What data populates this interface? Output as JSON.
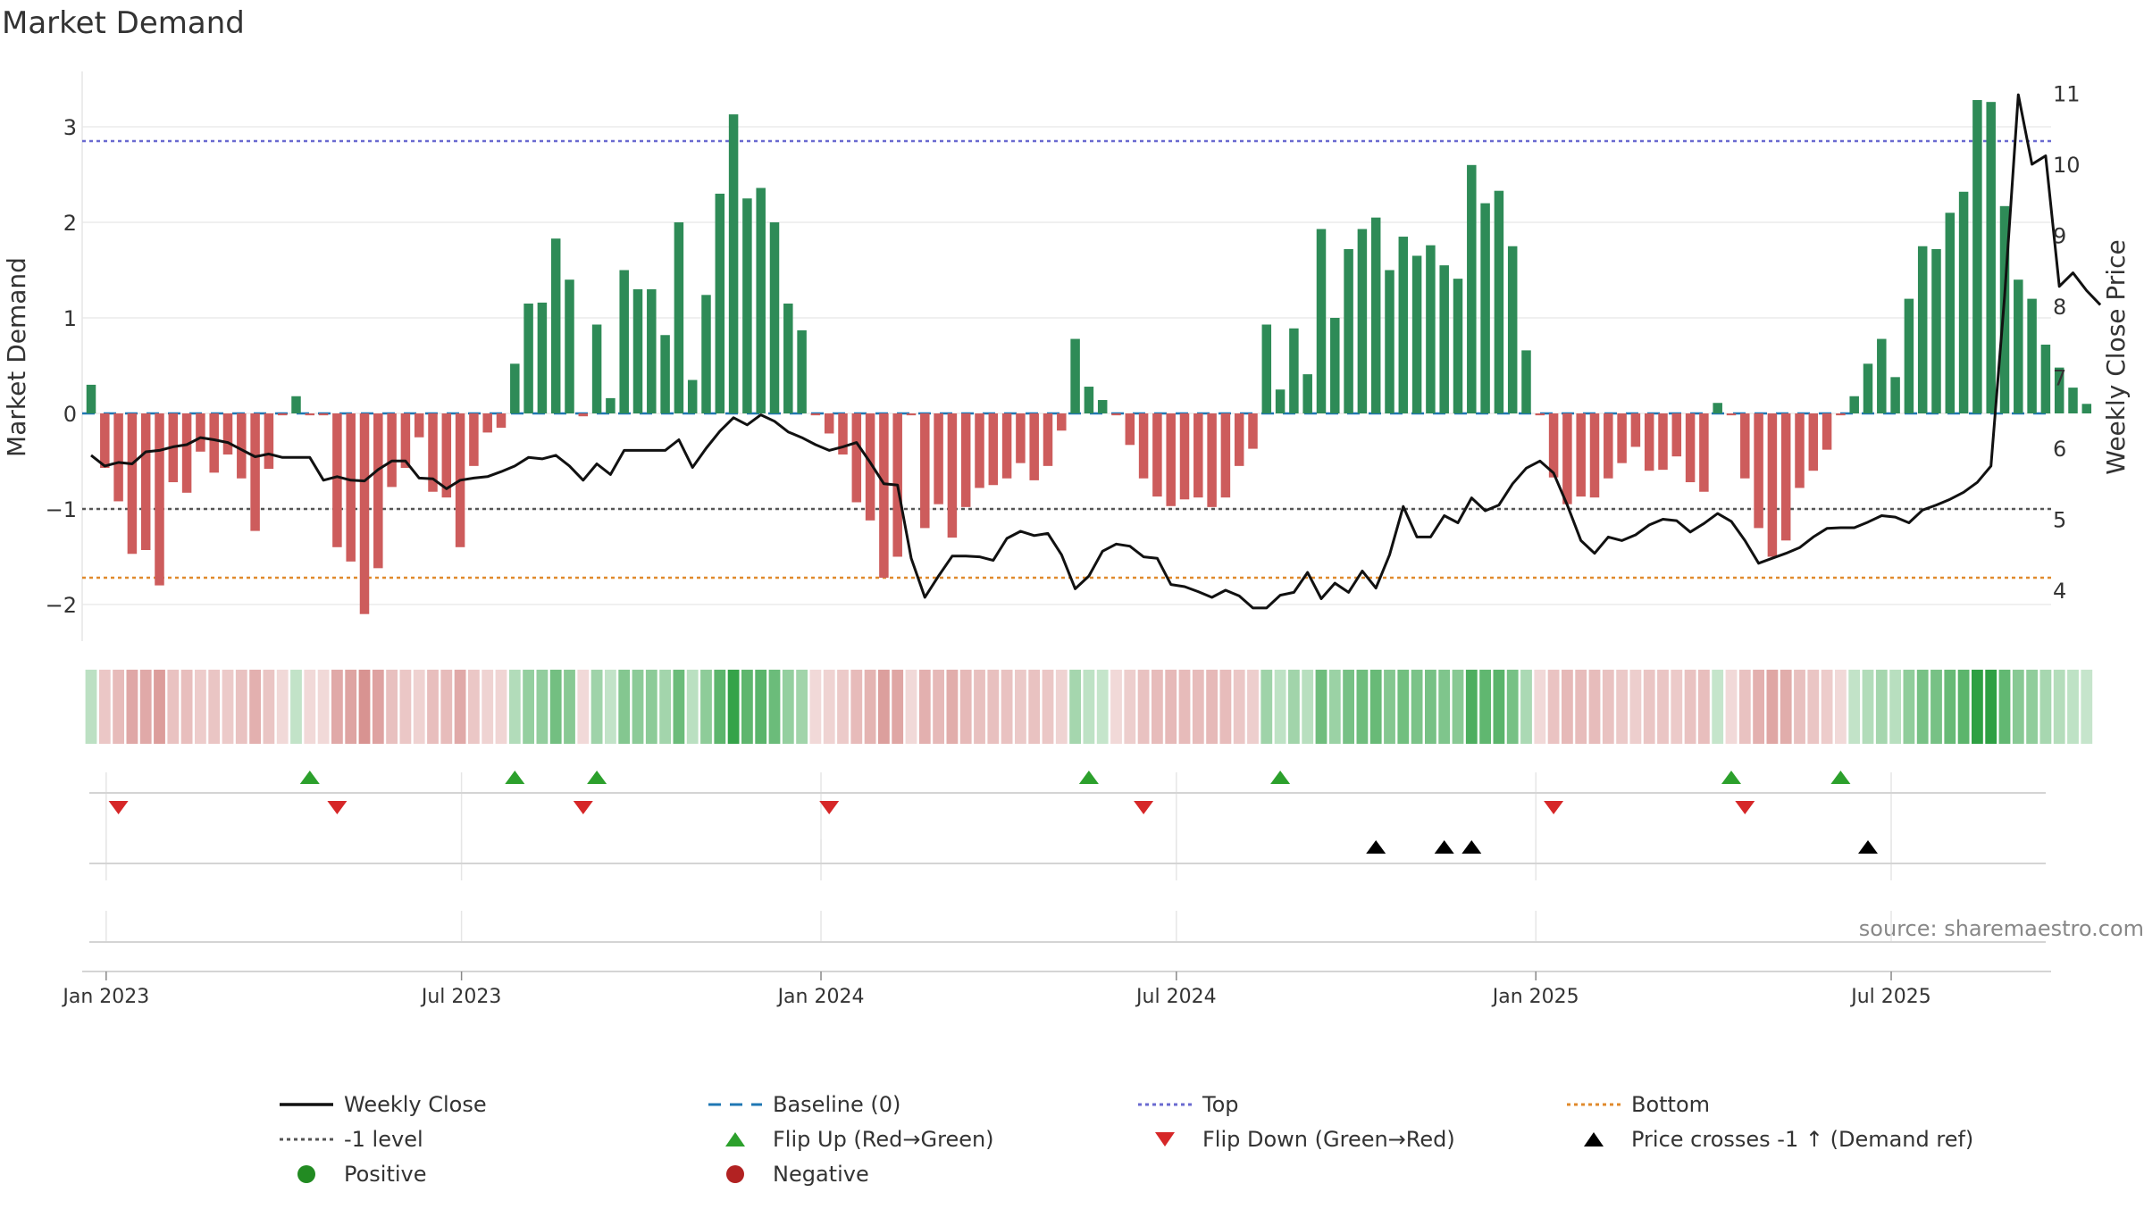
{
  "chart_data": {
    "type": "bar",
    "title": "Market Demand",
    "source": "source: sharemaestro.com",
    "ylabel_left": "Market Demand",
    "ylabel_right": "Weekly Close Price",
    "ylim_left": [
      -2.4,
      3.5
    ],
    "ylim_right": [
      3.2,
      11.2
    ],
    "yticks_left": [
      -2,
      -1,
      0,
      1,
      2,
      3
    ],
    "ytick_labels_left": [
      "−2",
      "−1",
      "0",
      "1",
      "2",
      "3"
    ],
    "yticks_right": [
      4,
      5,
      6,
      7,
      8,
      9,
      10,
      11
    ],
    "ytick_labels_right": [
      "4",
      "5",
      "6",
      "7",
      "8",
      "9",
      "10",
      "11"
    ],
    "reference_lines": {
      "top": 2.85,
      "minus_one": -1,
      "bottom": -1.72,
      "baseline": 0
    },
    "x_ticks": [
      {
        "label": "Jan 2023",
        "week": 1.1
      },
      {
        "label": "Jul 2023",
        "week": 27.1
      },
      {
        "label": "Jan 2024",
        "week": 53.4
      },
      {
        "label": "Jul 2024",
        "week": 79.4
      },
      {
        "label": "Jan 2025",
        "week": 105.7
      },
      {
        "label": "Jul 2025",
        "week": 131.7
      }
    ],
    "weeks": 145,
    "demand": [
      0.3,
      -0.57,
      -0.92,
      -1.47,
      -1.43,
      -1.8,
      -0.72,
      -0.83,
      -0.4,
      -0.62,
      -0.43,
      -0.68,
      -1.23,
      -0.58,
      -0.02,
      0.18,
      -0.02,
      -0.02,
      -1.4,
      -1.55,
      -2.1,
      -1.62,
      -0.77,
      -0.57,
      -0.25,
      -0.82,
      -0.88,
      -1.4,
      -0.55,
      -0.2,
      -0.15,
      0.52,
      1.15,
      1.16,
      1.83,
      1.4,
      -0.03,
      0.93,
      0.16,
      1.5,
      1.3,
      1.3,
      0.82,
      2.0,
      0.35,
      1.24,
      2.3,
      3.13,
      2.25,
      2.36,
      2.0,
      1.15,
      0.87,
      -0.02,
      -0.21,
      -0.43,
      -0.93,
      -1.12,
      -1.72,
      -1.5,
      -0.02,
      -1.2,
      -0.95,
      -1.3,
      -0.98,
      -0.78,
      -0.75,
      -0.68,
      -0.52,
      -0.7,
      -0.55,
      -0.18,
      0.78,
      0.28,
      0.14,
      -0.02,
      -0.33,
      -0.68,
      -0.87,
      -0.97,
      -0.9,
      -0.88,
      -0.98,
      -0.88,
      -0.55,
      -0.37,
      0.93,
      0.25,
      0.89,
      0.41,
      1.93,
      1.0,
      1.72,
      1.93,
      2.05,
      1.5,
      1.85,
      1.65,
      1.76,
      1.55,
      1.41,
      2.6,
      2.2,
      2.33,
      1.75,
      0.66,
      -0.02,
      -0.67,
      -0.95,
      -0.87,
      -0.88,
      -0.68,
      -0.52,
      -0.35,
      -0.6,
      -0.59,
      -0.45,
      -0.72,
      -0.82,
      0.11,
      -0.02,
      -0.68,
      -1.2,
      -1.5,
      -1.33,
      -0.78,
      -0.6,
      -0.38,
      -0.02,
      0.18,
      0.52,
      0.78,
      0.38,
      1.2,
      1.75,
      1.72,
      2.1,
      2.32,
      3.28,
      3.26,
      2.17,
      1.4,
      1.2,
      0.72,
      0.48,
      0.27,
      0.1
    ],
    "price": [
      5.9,
      5.75,
      5.8,
      5.78,
      5.95,
      5.97,
      6.02,
      6.05,
      6.15,
      6.12,
      6.08,
      5.98,
      5.88,
      5.92,
      5.87,
      5.87,
      5.87,
      5.55,
      5.6,
      5.55,
      5.54,
      5.7,
      5.82,
      5.82,
      5.58,
      5.57,
      5.43,
      5.55,
      5.58,
      5.6,
      5.67,
      5.75,
      5.87,
      5.85,
      5.9,
      5.75,
      5.55,
      5.78,
      5.63,
      5.97,
      5.97,
      5.97,
      5.97,
      6.12,
      5.73,
      6.0,
      6.24,
      6.43,
      6.33,
      6.47,
      6.38,
      6.23,
      6.15,
      6.05,
      5.97,
      6.02,
      6.08,
      5.8,
      5.5,
      5.48,
      4.45,
      3.9,
      4.2,
      4.48,
      4.48,
      4.47,
      4.42,
      4.73,
      4.83,
      4.77,
      4.8,
      4.5,
      4.02,
      4.2,
      4.55,
      4.65,
      4.62,
      4.47,
      4.45,
      4.08,
      4.05,
      3.98,
      3.9,
      4.0,
      3.92,
      3.75,
      3.75,
      3.93,
      3.97,
      4.25,
      3.88,
      4.1,
      3.97,
      4.27,
      4.03,
      4.5,
      5.18,
      4.75,
      4.75,
      5.05,
      4.95,
      5.3,
      5.12,
      5.2,
      5.5,
      5.72,
      5.82,
      5.65,
      5.2,
      4.7,
      4.52,
      4.75,
      4.7,
      4.78,
      4.92,
      5.0,
      4.98,
      4.82,
      4.94,
      5.08,
      4.97,
      4.7,
      4.38,
      4.45,
      4.52,
      4.6,
      4.75,
      4.87,
      4.88,
      4.88,
      4.96,
      5.05,
      5.03,
      4.95,
      5.13,
      5.2,
      5.28,
      5.38,
      5.52,
      5.75,
      8.15,
      10.98,
      10.0,
      10.12,
      8.28,
      8.47,
      8.22,
      8.02
    ]
  },
  "markers": {
    "flip_up_weeks": [
      16,
      31,
      37,
      73,
      87,
      120,
      128
    ],
    "flip_down_weeks": [
      2,
      18,
      36,
      54,
      77,
      107,
      121
    ],
    "price_cross_weeks": [
      94,
      99,
      101,
      130
    ]
  },
  "legend": {
    "weekly_close": "Weekly Close",
    "baseline": "Baseline (0)",
    "top": "Top",
    "bottom": "Bottom",
    "minus_one": "-1 level",
    "flip_up": "Flip Up (Red→Green)",
    "flip_down": "Flip Down (Green→Red)",
    "price_cross": "Price crosses -1 ↑ (Demand ref)",
    "positive": "Positive",
    "negative": "Negative"
  },
  "colors": {
    "positive_bar": "#2e8b57",
    "negative_bar": "#cd5c5c",
    "price_line": "#111111",
    "baseline": "#1f77b4",
    "top_line": "#6a6ad0",
    "minus_one_line": "#555555",
    "bottom_line": "#e08a2c",
    "flip_up": "#2ca02c",
    "flip_down": "#d62728",
    "price_cross": "#000000",
    "positive_dot": "#228b22",
    "negative_dot": "#b22222"
  }
}
